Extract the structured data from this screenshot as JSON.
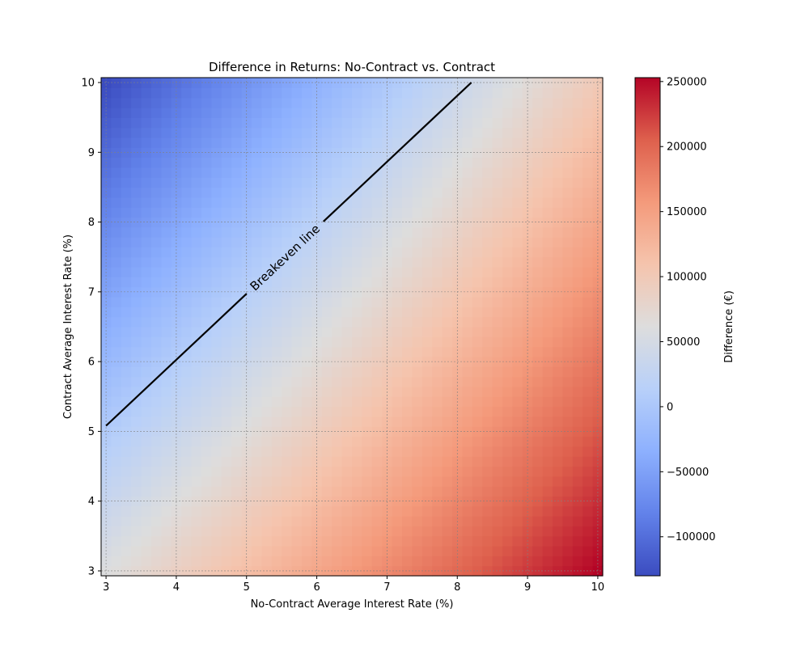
{
  "chart_data": {
    "type": "heatmap",
    "title": "Difference in Returns: No-Contract vs. Contract",
    "xlabel": "No-Contract Average Interest Rate (%)",
    "ylabel": "Contract Average Interest Rate (%)",
    "xlim": [
      2.93,
      10.07
    ],
    "ylim": [
      2.93,
      10.07
    ],
    "x_ticks": [
      3,
      4,
      5,
      6,
      7,
      8,
      9,
      10
    ],
    "y_ticks": [
      3,
      4,
      5,
      6,
      7,
      8,
      9,
      10
    ],
    "grid": true,
    "grid_count": 50,
    "colormap": "coolwarm",
    "value_range": [
      -130000,
      253000
    ],
    "neutral_value": 60000,
    "corner_values": {
      "x3_y3": 60000,
      "x10_y3": 253000,
      "x3_y10": -130000,
      "x10_y10": 100000
    },
    "colorbar": {
      "label": "Difference (€)",
      "ticks": [
        -100000,
        -50000,
        0,
        50000,
        100000,
        150000,
        200000,
        250000
      ]
    },
    "breakeven_line": {
      "label": "Breakeven line",
      "start": {
        "x": 3.0,
        "y": 5.08
      },
      "end": {
        "x": 8.2,
        "y": 10.0
      },
      "color": "#000000"
    }
  }
}
